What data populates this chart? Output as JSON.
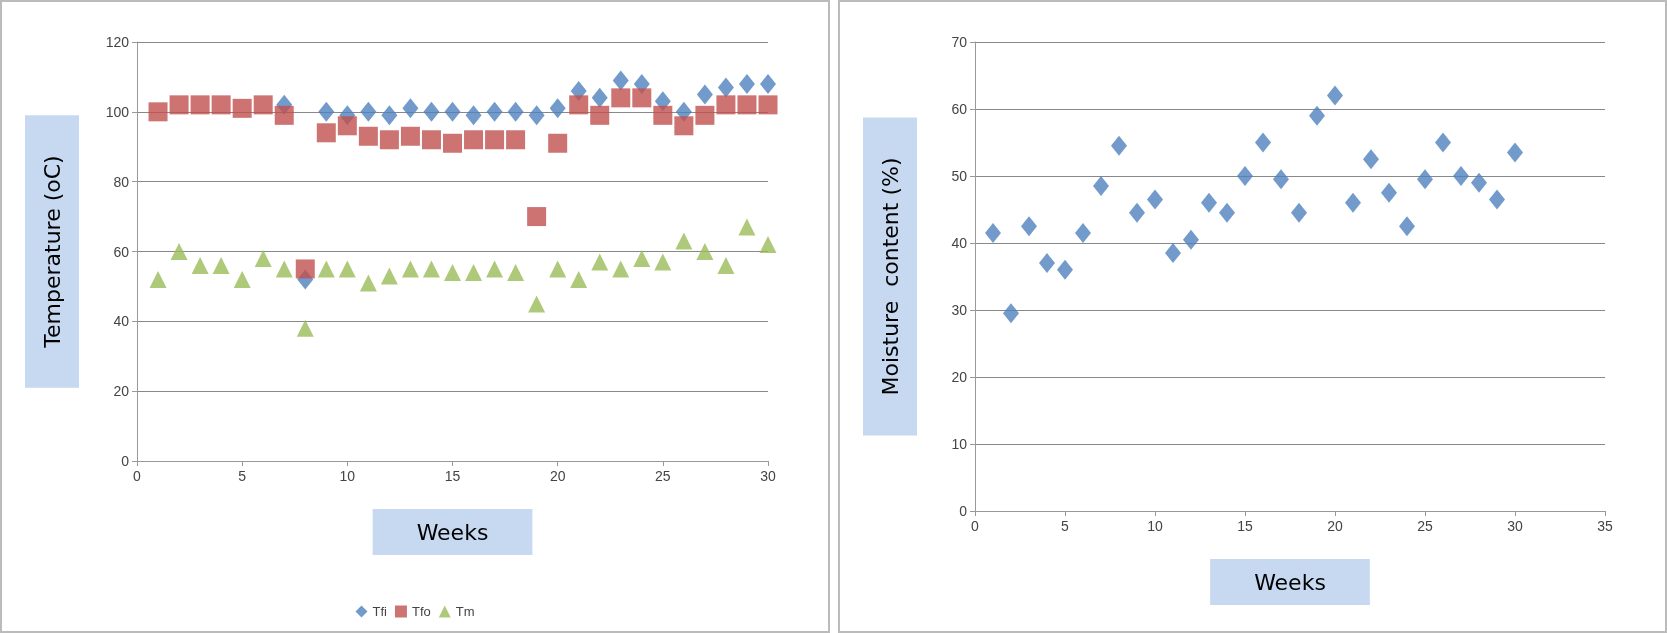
{
  "chart_data": [
    {
      "type": "scatter",
      "xlabel": "Weeks",
      "ylabel": "Temperature (oC)",
      "x": [
        1,
        2,
        3,
        4,
        5,
        6,
        7,
        8,
        9,
        10,
        11,
        12,
        13,
        14,
        15,
        16,
        17,
        18,
        19,
        20,
        21,
        22,
        23,
        24,
        25,
        26,
        27,
        28,
        29,
        30
      ],
      "xlim": [
        0,
        30
      ],
      "xticks": [
        0,
        5,
        10,
        15,
        20,
        25,
        30
      ],
      "ylim": [
        0,
        120
      ],
      "yticks": [
        0,
        20,
        40,
        60,
        80,
        100,
        120
      ],
      "grid": "y",
      "legend": "bottom",
      "series": [
        {
          "name": "Tfi",
          "color": "#4f81bd",
          "marker": "diamond",
          "values": [
            null,
            null,
            null,
            null,
            null,
            null,
            102,
            52,
            100,
            99,
            100,
            99,
            101,
            100,
            100,
            99,
            100,
            100,
            99,
            101,
            106,
            104,
            109,
            108,
            103,
            100,
            105,
            107,
            108,
            108
          ]
        },
        {
          "name": "Tfo",
          "color": "#c0504d",
          "marker": "square",
          "values": [
            100,
            102,
            102,
            102,
            101,
            102,
            99,
            55,
            94,
            96,
            93,
            92,
            93,
            92,
            91,
            92,
            92,
            92,
            70,
            91,
            102,
            99,
            104,
            104,
            99,
            96,
            99,
            102,
            102,
            102
          ]
        },
        {
          "name": "Tm",
          "color": "#9bbb59",
          "marker": "triangle",
          "values": [
            52,
            60,
            56,
            56,
            52,
            58,
            55,
            38,
            55,
            55,
            51,
            53,
            55,
            55,
            54,
            54,
            55,
            54,
            45,
            55,
            52,
            57,
            55,
            58,
            57,
            63,
            60,
            56,
            67,
            62
          ]
        }
      ]
    },
    {
      "type": "scatter",
      "xlabel": "Weeks",
      "ylabel": "Moisture  content (%)",
      "x": [
        1,
        2,
        3,
        4,
        5,
        6,
        7,
        8,
        9,
        10,
        11,
        12,
        13,
        14,
        15,
        16,
        17,
        18,
        19,
        20,
        21,
        22,
        23,
        24,
        25,
        26,
        27,
        28,
        29,
        30
      ],
      "xlim": [
        0,
        35
      ],
      "xticks": [
        0,
        5,
        10,
        15,
        20,
        25,
        30,
        35
      ],
      "ylim": [
        0,
        70
      ],
      "yticks": [
        0,
        10,
        20,
        30,
        40,
        50,
        60,
        70
      ],
      "grid": "y",
      "marker": "diamond",
      "series": [
        {
          "color": "#4f81bd",
          "values": [
            41.5,
            29.5,
            42.5,
            37,
            36,
            41.5,
            48.5,
            54.5,
            44.5,
            46.5,
            38.5,
            40.5,
            46,
            44.5,
            50,
            55,
            49.5,
            44.5,
            59,
            62,
            46,
            52.5,
            47.5,
            42.5,
            49.5,
            55,
            50,
            49,
            46.5,
            53.5
          ]
        }
      ]
    }
  ]
}
